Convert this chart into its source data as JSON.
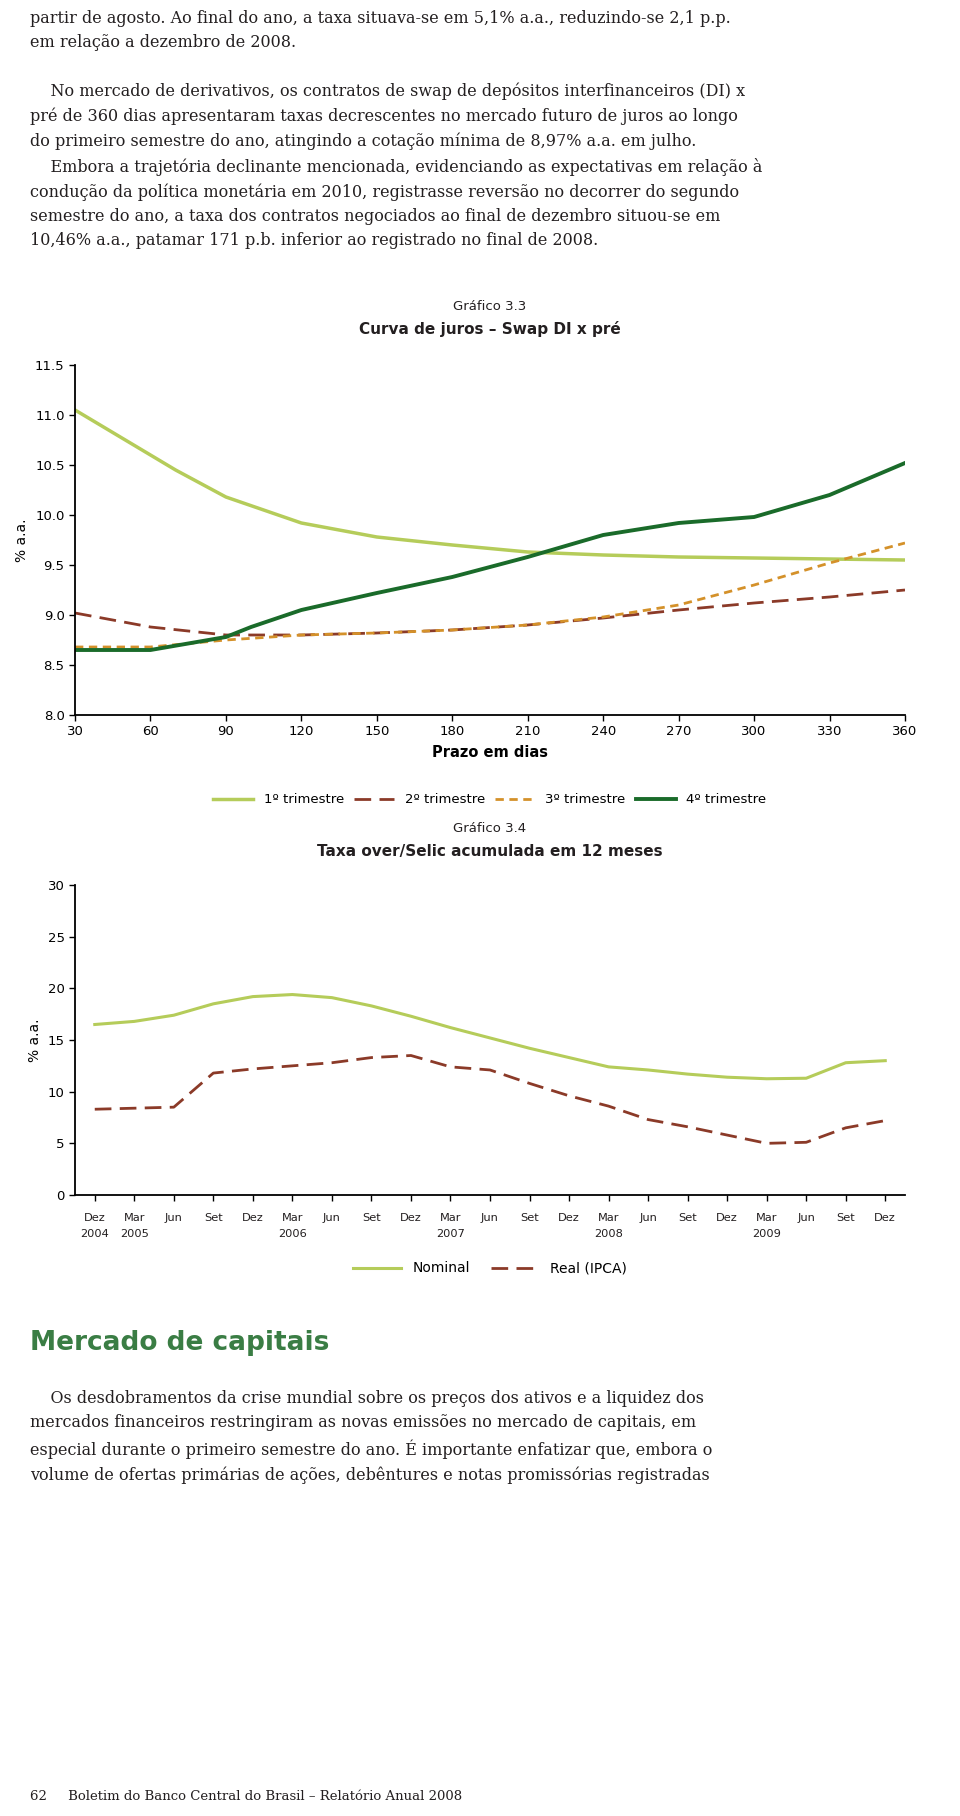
{
  "page_bg": "#ffffff",
  "text_color": "#231f20",
  "chart1_subtitle": "Gráfico 3.3",
  "chart1_title": "Curva de juros – Swap DI x pré",
  "chart1_xlabel": "Prazo em dias",
  "chart1_ylabel": "% a.a.",
  "chart1_xlim": [
    30,
    360
  ],
  "chart1_ylim": [
    8.0,
    11.5
  ],
  "chart1_xticks": [
    30,
    60,
    90,
    120,
    150,
    180,
    210,
    240,
    270,
    300,
    330,
    360
  ],
  "chart1_yticks": [
    8.0,
    8.5,
    9.0,
    9.5,
    10.0,
    10.5,
    11.0,
    11.5
  ],
  "chart1_series": {
    "1trim": {
      "x": [
        30,
        50,
        70,
        90,
        120,
        150,
        180,
        210,
        240,
        270,
        300,
        330,
        360
      ],
      "y": [
        11.05,
        10.75,
        10.45,
        10.18,
        9.92,
        9.78,
        9.7,
        9.63,
        9.6,
        9.58,
        9.57,
        9.56,
        9.55
      ],
      "color": "#b5cc5a",
      "linestyle": "-",
      "linewidth": 2.5,
      "label": "1º trimestre"
    },
    "2trim": {
      "x": [
        30,
        60,
        90,
        120,
        150,
        180,
        210,
        240,
        270,
        300,
        330,
        360
      ],
      "y": [
        9.02,
        8.88,
        8.8,
        8.8,
        8.82,
        8.85,
        8.9,
        8.97,
        9.05,
        9.12,
        9.18,
        9.25
      ],
      "color": "#8b3a28",
      "linestyle": "--",
      "linewidth": 2.0,
      "label": "2º trimestre"
    },
    "3trim": {
      "x": [
        30,
        60,
        90,
        120,
        150,
        180,
        210,
        240,
        270,
        300,
        330,
        360
      ],
      "y": [
        8.68,
        8.68,
        8.75,
        8.8,
        8.82,
        8.85,
        8.9,
        8.98,
        9.1,
        9.3,
        9.52,
        9.72
      ],
      "color": "#d4912a",
      "linestyle": "--",
      "linewidth": 2.0,
      "label": "3º trimestre",
      "dashes": [
        2,
        2
      ]
    },
    "4trim": {
      "x": [
        30,
        60,
        90,
        100,
        120,
        150,
        180,
        210,
        240,
        270,
        300,
        330,
        360
      ],
      "y": [
        8.65,
        8.65,
        8.78,
        8.88,
        9.05,
        9.22,
        9.38,
        9.58,
        9.8,
        9.92,
        9.98,
        10.2,
        10.52
      ],
      "color": "#1a6b2a",
      "linestyle": "-",
      "linewidth": 2.8,
      "label": "4º trimestre"
    }
  },
  "chart2_subtitle": "Gráfico 3.4",
  "chart2_title": "Taxa over/Selic acumulada em 12 meses",
  "chart2_ylabel": "% a.a.",
  "chart2_ylim": [
    0,
    30
  ],
  "chart2_yticks": [
    0,
    5,
    10,
    15,
    20,
    25,
    30
  ],
  "chart2_x": [
    0,
    1,
    2,
    3,
    4,
    5,
    6,
    7,
    8,
    9,
    10,
    11,
    12,
    13,
    14,
    15,
    16,
    17,
    18,
    19,
    20
  ],
  "chart2_nominal_y": [
    16.5,
    16.8,
    17.4,
    18.5,
    19.2,
    19.4,
    19.1,
    18.3,
    17.3,
    16.2,
    15.2,
    14.2,
    13.3,
    12.4,
    12.1,
    11.7,
    11.4,
    11.25,
    11.3,
    12.8,
    13.0
  ],
  "chart2_real_y": [
    8.3,
    8.4,
    8.5,
    11.8,
    12.2,
    12.5,
    12.8,
    13.3,
    13.5,
    12.4,
    12.1,
    10.8,
    9.6,
    8.6,
    7.3,
    6.6,
    5.8,
    5.0,
    5.1,
    6.5,
    7.2
  ],
  "chart2_nominal_color": "#b5cc5a",
  "chart2_real_color": "#8b3a28",
  "chart2_top_labels": [
    "Dez",
    "Mar",
    "Jun",
    "Set",
    "Dez",
    "Mar",
    "Jun",
    "Set",
    "Dez",
    "Mar",
    "Jun",
    "Set",
    "Dez",
    "Mar",
    "Jun",
    "Set",
    "Dez",
    "Mar",
    "Jun",
    "Set",
    "Dez"
  ],
  "chart2_bot_labels": [
    "2004",
    "2005",
    "",
    "",
    "",
    "2006",
    "",
    "",
    "",
    "2007",
    "",
    "",
    "",
    "2008",
    "",
    "",
    "",
    "2009",
    "",
    "",
    ""
  ],
  "footer_text": "62     Boletim do Banco Central do Brasil – Relatório Anual 2008"
}
